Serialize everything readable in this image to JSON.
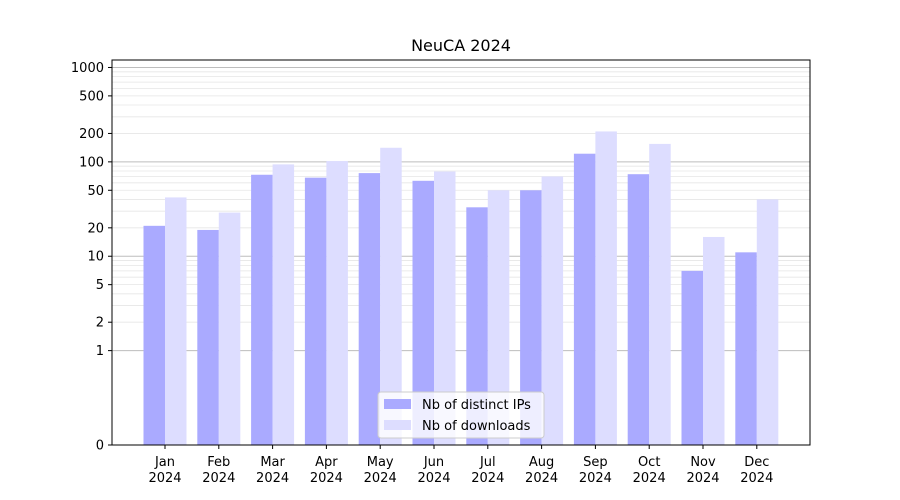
{
  "chart_data": {
    "type": "bar",
    "title": "NeuCA 2024",
    "xlabel": "",
    "ylabel": "",
    "yscale": "symlog",
    "ylim": [
      0,
      1200
    ],
    "yticks": [
      "0",
      "1",
      "2",
      "5",
      "10",
      "20",
      "50",
      "100",
      "200",
      "500",
      "1000"
    ],
    "grid": "y",
    "legend_position": "bottom-center",
    "categories": [
      [
        "Jan",
        "2024"
      ],
      [
        "Feb",
        "2024"
      ],
      [
        "Mar",
        "2024"
      ],
      [
        "Apr",
        "2024"
      ],
      [
        "May",
        "2024"
      ],
      [
        "Jun",
        "2024"
      ],
      [
        "Jul",
        "2024"
      ],
      [
        "Aug",
        "2024"
      ],
      [
        "Sep",
        "2024"
      ],
      [
        "Oct",
        "2024"
      ],
      [
        "Nov",
        "2024"
      ],
      [
        "Dec",
        "2024"
      ]
    ],
    "series": [
      {
        "name": "Nb of distinct IPs",
        "color": "#aaaaff",
        "values": [
          21,
          19,
          73,
          68,
          76,
          63,
          33,
          50,
          122,
          74,
          7,
          11
        ]
      },
      {
        "name": "Nb of downloads",
        "color": "#ddddff",
        "values": [
          42,
          29,
          94,
          102,
          141,
          79,
          50,
          70,
          210,
          155,
          16,
          40
        ]
      }
    ]
  }
}
